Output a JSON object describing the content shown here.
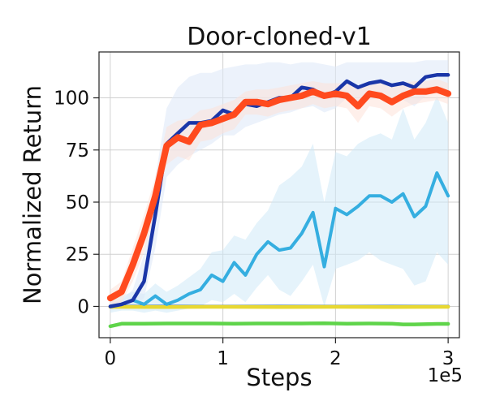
{
  "chart_data": {
    "type": "line",
    "title": "Door-cloned-v1",
    "xlabel": "Steps",
    "ylabel": "Normalized Return",
    "x_multiplier_label": "1e5",
    "xlim": [
      -0.1,
      3.1
    ],
    "ylim": [
      -15,
      122
    ],
    "xticks": [
      0,
      1,
      2,
      3
    ],
    "yticks": [
      0,
      25,
      50,
      75,
      100
    ],
    "grid": true,
    "legend": "none",
    "series": [
      {
        "color": "#5fd44a",
        "x": [
          0,
          0.1,
          0.3,
          0.5,
          0.7,
          0.9,
          1.1,
          1.3,
          1.5,
          1.7,
          1.9,
          2.1,
          2.3,
          2.5,
          2.6,
          2.7,
          2.9,
          3.0
        ],
        "values": [
          -9.5,
          -8.3,
          -8.3,
          -8.2,
          -8.2,
          -8.2,
          -8.3,
          -8.2,
          -8.2,
          -8.2,
          -8.1,
          -8.3,
          -8.2,
          -8.3,
          -8.6,
          -8.6,
          -8.4,
          -8.4
        ],
        "band_width": 0.4
      },
      {
        "color": "#1f5faa",
        "x": [
          0,
          0.5,
          1.0,
          1.5,
          2.0,
          2.5,
          3.0
        ],
        "values": [
          0,
          0,
          0,
          0,
          0,
          0,
          0
        ],
        "band_width": 0.4
      },
      {
        "color": "#e8d832",
        "x": [
          0,
          0.5,
          1.0,
          1.5,
          2.0,
          2.5,
          3.0
        ],
        "values": [
          -0.2,
          -0.3,
          -0.2,
          -0.3,
          -0.2,
          -0.3,
          -0.2
        ],
        "band_width": 0.6
      },
      {
        "color": "#35aee0",
        "band_color": "#cfe9f8",
        "x": [
          0,
          0.1,
          0.2,
          0.3,
          0.4,
          0.5,
          0.6,
          0.7,
          0.8,
          0.9,
          1.0,
          1.1,
          1.2,
          1.3,
          1.4,
          1.5,
          1.6,
          1.7,
          1.8,
          1.9,
          2.0,
          2.1,
          2.2,
          2.3,
          2.4,
          2.5,
          2.6,
          2.7,
          2.8,
          2.9,
          3.0
        ],
        "values": [
          0,
          1,
          3,
          1,
          5,
          1,
          3,
          6,
          8,
          15,
          12,
          21,
          15,
          25,
          31,
          27,
          28,
          35,
          45,
          19,
          47,
          44,
          48,
          53,
          53,
          50,
          54,
          43,
          48,
          64,
          53
        ],
        "band_upper": [
          3,
          5,
          7,
          6,
          11,
          7,
          10,
          14,
          18,
          26,
          27,
          34,
          32,
          40,
          46,
          58,
          62,
          67,
          78,
          50,
          74,
          72,
          78,
          81,
          83,
          80,
          95,
          80,
          88,
          101,
          88
        ],
        "band_lower": [
          -3,
          -2,
          -2,
          -3,
          -2,
          -3,
          -2,
          -1,
          0,
          3,
          2,
          6,
          2,
          9,
          15,
          8,
          5,
          12,
          20,
          0,
          18,
          20,
          22,
          26,
          22,
          20,
          18,
          10,
          12,
          26,
          20
        ]
      },
      {
        "color": "#1a36a8",
        "band_color": "#dde8f8",
        "x": [
          0,
          0.1,
          0.2,
          0.3,
          0.4,
          0.5,
          0.6,
          0.7,
          0.8,
          0.9,
          1.0,
          1.1,
          1.2,
          1.3,
          1.4,
          1.5,
          1.6,
          1.7,
          1.8,
          1.9,
          2.0,
          2.1,
          2.2,
          2.3,
          2.4,
          2.5,
          2.6,
          2.7,
          2.8,
          2.9,
          3.0
        ],
        "values": [
          0,
          1,
          3,
          12,
          44,
          78,
          83,
          88,
          88,
          89,
          94,
          92,
          97,
          96,
          98,
          100,
          100,
          105,
          104,
          101,
          103,
          108,
          105,
          107,
          108,
          106,
          107,
          105,
          110,
          111,
          111
        ],
        "band_upper": [
          2,
          3,
          8,
          25,
          62,
          95,
          105,
          110,
          112,
          112,
          114,
          115,
          116,
          116,
          117,
          117,
          116,
          117,
          117,
          116,
          115,
          117,
          117,
          117,
          117,
          117,
          117,
          117,
          118,
          118,
          118
        ],
        "band_lower": [
          -2,
          -1,
          0,
          4,
          28,
          62,
          68,
          72,
          75,
          78,
          82,
          82,
          86,
          88,
          90,
          92,
          93,
          95,
          96,
          93,
          95,
          100,
          97,
          99,
          100,
          97,
          99,
          96,
          101,
          103,
          104
        ]
      },
      {
        "color": "#ff4a1e",
        "band_color": "#fde2d8",
        "x": [
          0,
          0.1,
          0.2,
          0.3,
          0.4,
          0.5,
          0.6,
          0.7,
          0.8,
          0.9,
          1.0,
          1.1,
          1.2,
          1.3,
          1.4,
          1.5,
          1.6,
          1.7,
          1.8,
          1.9,
          2.0,
          2.1,
          2.2,
          2.3,
          2.4,
          2.5,
          2.6,
          2.7,
          2.8,
          2.9,
          3.0
        ],
        "values": [
          4,
          7,
          20,
          35,
          53,
          77,
          81,
          79,
          87,
          88,
          90,
          92,
          98,
          98,
          97,
          99,
          100,
          101,
          103,
          101,
          102,
          101,
          96,
          102,
          101,
          98,
          101,
          103,
          103,
          104,
          102
        ],
        "band_upper": [
          8,
          12,
          28,
          44,
          62,
          86,
          89,
          90,
          94,
          95,
          97,
          99,
          103,
          104,
          104,
          105,
          106,
          107,
          108,
          107,
          107,
          107,
          104,
          107,
          107,
          105,
          107,
          108,
          108,
          109,
          107
        ],
        "band_lower": [
          0,
          2,
          12,
          26,
          44,
          68,
          72,
          70,
          79,
          80,
          83,
          85,
          92,
          92,
          91,
          93,
          94,
          95,
          97,
          95,
          96,
          95,
          88,
          96,
          95,
          91,
          95,
          97,
          98,
          99,
          97
        ]
      }
    ]
  }
}
